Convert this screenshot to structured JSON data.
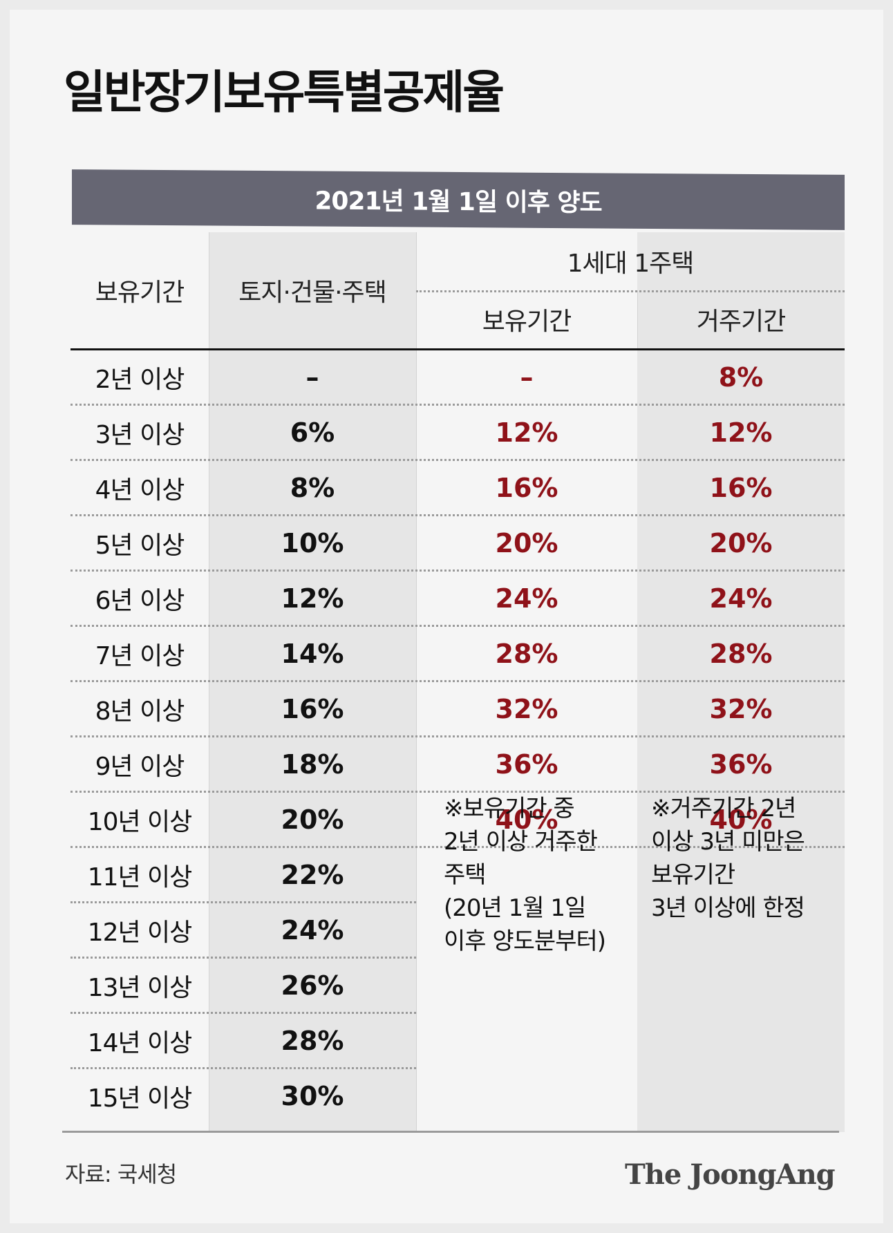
{
  "title": "일반장기보유특별공제율",
  "banner": "2021년 1월 1일 이후 양도",
  "headers": {
    "period": "보유기간",
    "general": "토지·건물·주택",
    "one_house": "1세대 1주택",
    "hold": "보유기간",
    "live": "거주기간"
  },
  "rows": [
    {
      "period": "2년 이상",
      "general": "–",
      "hold": "–",
      "live": "8%"
    },
    {
      "period": "3년 이상",
      "general": "6%",
      "hold": "12%",
      "live": "12%"
    },
    {
      "period": "4년 이상",
      "general": "8%",
      "hold": "16%",
      "live": "16%"
    },
    {
      "period": "5년 이상",
      "general": "10%",
      "hold": "20%",
      "live": "20%"
    },
    {
      "period": "6년 이상",
      "general": "12%",
      "hold": "24%",
      "live": "24%"
    },
    {
      "period": "7년 이상",
      "general": "14%",
      "hold": "28%",
      "live": "28%"
    },
    {
      "period": "8년 이상",
      "general": "16%",
      "hold": "32%",
      "live": "32%"
    },
    {
      "period": "9년 이상",
      "general": "18%",
      "hold": "36%",
      "live": "36%"
    },
    {
      "period": "10년 이상",
      "general": "20%",
      "hold": "40%",
      "live": "40%"
    },
    {
      "period": "11년 이상",
      "general": "22%",
      "hold": "",
      "live": ""
    },
    {
      "period": "12년 이상",
      "general": "24%",
      "hold": "",
      "live": ""
    },
    {
      "period": "13년 이상",
      "general": "26%",
      "hold": "",
      "live": ""
    },
    {
      "period": "14년 이상",
      "general": "28%",
      "hold": "",
      "live": ""
    },
    {
      "period": "15년 이상",
      "general": "30%",
      "hold": "",
      "live": ""
    }
  ],
  "notes": {
    "hold": "※보유기간 중\n2년 이상 거주한\n주택\n(20년 1월 1일\n이후 양도분부터)",
    "live": "※거주기간 2년\n이상 3년 미만은\n보유기간\n3년 이상에 한정"
  },
  "source": "자료: 국세청",
  "brand": "The JoongAng",
  "colors": {
    "banner": "#666673",
    "accent_red": "#8f1219",
    "band": "#e6e6e6"
  }
}
